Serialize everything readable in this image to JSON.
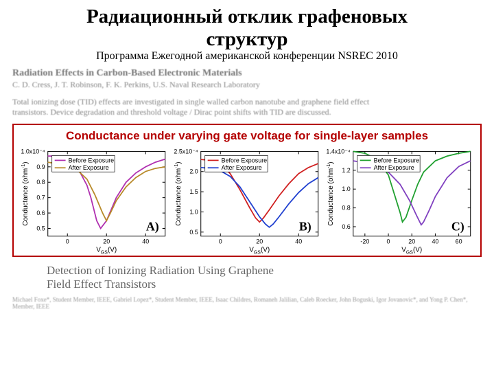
{
  "title_line1": "Радиационный отклик графеновых",
  "title_line2": "структур",
  "subtitle": "Программа Ежегодной американской конференции NSREC 2010",
  "paper1": {
    "heading": "Radiation Effects in Carbon-Based Electronic Materials",
    "authors": "C. D. Cress, J. T. Robinson, F. K. Perkins, U.S. Naval Research Laboratory",
    "abstract": "Total ionizing dose (TID) effects are investigated in single walled carbon nanotube and graphene field effect transistors. Device degradation and threshold voltage / Dirac point shifts with TID are discussed."
  },
  "chartblock": {
    "title": "Conductance under varying gate voltage for single-layer samples",
    "ylabel": "Conductance (ohm",
    "ylabel_sup": "-1",
    "ylabel_close": ")",
    "xlabel_prefix": "V",
    "xlabel_sub": "GS",
    "xlabel_suffix": "(V)",
    "legend_before": "Before Exposure",
    "legend_after": "After Exposure",
    "panelA": {
      "label": "A)",
      "exponent": "1.0x10⁻⁴",
      "xlim": [
        -10,
        50
      ],
      "xticks": [
        0,
        20,
        40
      ],
      "ylim": [
        0.45,
        1.0
      ],
      "yticks": [
        0.5,
        0.6,
        0.7,
        0.8,
        0.9
      ],
      "before": {
        "color": "#b030b0",
        "x": [
          -10,
          -5,
          0,
          5,
          10,
          12,
          15,
          17,
          20,
          25,
          30,
          35,
          40,
          45,
          50
        ],
        "y": [
          0.97,
          0.97,
          0.95,
          0.9,
          0.78,
          0.7,
          0.55,
          0.5,
          0.55,
          0.7,
          0.8,
          0.86,
          0.9,
          0.93,
          0.95
        ]
      },
      "after": {
        "color": "#b88a2a",
        "x": [
          -10,
          -5,
          0,
          5,
          10,
          14,
          18,
          20,
          22,
          25,
          30,
          35,
          40,
          45,
          50
        ],
        "y": [
          0.93,
          0.92,
          0.91,
          0.88,
          0.82,
          0.72,
          0.6,
          0.55,
          0.6,
          0.68,
          0.77,
          0.83,
          0.87,
          0.89,
          0.9
        ]
      }
    },
    "panelB": {
      "label": "B)",
      "exponent": "2.5x10⁻⁴",
      "xlim": [
        -10,
        50
      ],
      "xticks": [
        0,
        20,
        40
      ],
      "ylim": [
        0.4,
        2.5
      ],
      "yticks": [
        0.5,
        1.0,
        1.5,
        2.0
      ],
      "before": {
        "color": "#d02020",
        "x": [
          -10,
          -5,
          0,
          5,
          10,
          15,
          18,
          20,
          22,
          25,
          30,
          35,
          40,
          45,
          50
        ],
        "y": [
          2.3,
          2.28,
          2.2,
          1.95,
          1.55,
          1.1,
          0.85,
          0.75,
          0.85,
          1.05,
          1.4,
          1.7,
          1.95,
          2.1,
          2.2
        ]
      },
      "after": {
        "color": "#2040d0",
        "x": [
          -10,
          -5,
          0,
          5,
          10,
          15,
          20,
          23,
          25,
          27,
          30,
          35,
          40,
          45,
          50
        ],
        "y": [
          2.1,
          2.08,
          2.02,
          1.88,
          1.62,
          1.25,
          0.88,
          0.7,
          0.62,
          0.7,
          0.88,
          1.2,
          1.48,
          1.7,
          1.85
        ]
      }
    },
    "panelC": {
      "label": "C)",
      "exponent": "1.4x10⁻⁴",
      "xlim": [
        -30,
        70
      ],
      "xticks": [
        -20,
        0,
        20,
        40,
        60
      ],
      "ylim": [
        0.5,
        1.4
      ],
      "yticks": [
        0.6,
        0.8,
        1.0,
        1.2
      ],
      "before": {
        "color": "#20a030",
        "x": [
          -30,
          -20,
          -10,
          0,
          5,
          10,
          12,
          15,
          20,
          25,
          30,
          40,
          50,
          60,
          70
        ],
        "y": [
          1.4,
          1.38,
          1.32,
          1.15,
          0.95,
          0.75,
          0.65,
          0.7,
          0.88,
          1.05,
          1.18,
          1.3,
          1.35,
          1.38,
          1.4
        ]
      },
      "after": {
        "color": "#8040c0",
        "x": [
          -30,
          -20,
          -10,
          0,
          10,
          18,
          24,
          28,
          30,
          35,
          40,
          50,
          60,
          70
        ],
        "y": [
          1.3,
          1.28,
          1.24,
          1.18,
          1.05,
          0.88,
          0.72,
          0.62,
          0.65,
          0.78,
          0.92,
          1.12,
          1.24,
          1.3
        ]
      }
    }
  },
  "paper2": {
    "title1": "Detection of Ionizing Radiation Using Graphene",
    "title2": "Field Effect Transistors",
    "authors": "Michael Foxe*, Student Member, IEEE, Gabriel Lopez*, Student Member, IEEE, Isaac Childres, Romaneh Jalilian, Caleb Roecker, John Boguski, Igor Jovanovic*, and Yong P. Chen*, Member, IEEE"
  }
}
